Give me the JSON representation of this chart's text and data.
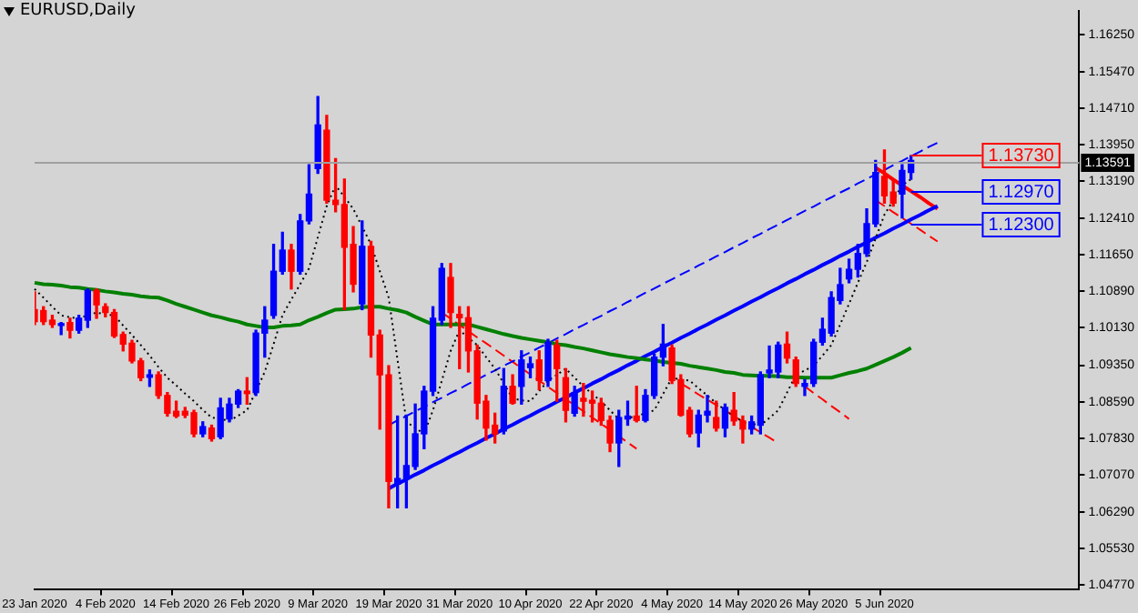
{
  "chart_data": {
    "type": "candlestick",
    "title": "EURUSD,Daily",
    "categories": [
      "23 Jan 2020",
      null,
      null,
      null,
      null,
      null,
      null,
      null,
      "4 Feb 2020",
      null,
      null,
      null,
      null,
      null,
      null,
      null,
      "14 Feb 2020",
      null,
      null,
      null,
      null,
      null,
      null,
      null,
      "26 Feb 2020",
      null,
      null,
      null,
      null,
      null,
      null,
      null,
      "9 Mar 2020",
      null,
      null,
      null,
      null,
      null,
      null,
      null,
      "19 Mar 2020",
      null,
      null,
      null,
      null,
      null,
      null,
      null,
      "31 Mar 2020",
      null,
      null,
      null,
      null,
      null,
      null,
      null,
      "10 Apr 2020",
      null,
      null,
      null,
      null,
      null,
      null,
      null,
      "22 Apr 2020",
      null,
      null,
      null,
      null,
      null,
      null,
      null,
      "4 May 2020",
      null,
      null,
      null,
      null,
      null,
      null,
      null,
      "14 May 2020",
      null,
      null,
      null,
      null,
      null,
      null,
      null,
      "26 May 2020",
      null,
      null,
      null,
      null,
      null,
      null,
      null,
      "5 Jun 2020",
      null,
      null,
      null,
      null,
      null,
      null,
      null,
      null,
      null,
      null,
      null,
      null,
      null,
      null,
      null,
      null,
      null,
      null,
      null,
      null,
      null,
      null
    ],
    "ohlc": [
      [
        1.1051,
        1.1088,
        1.102,
        1.1026
      ],
      [
        1.1049,
        1.1057,
        1.102,
        1.1026
      ],
      [
        1.1029,
        1.1039,
        1.1014,
        1.102
      ],
      [
        1.1018,
        1.1024,
        1.0999,
        1.102
      ],
      [
        1.1024,
        1.1033,
        1.0992,
        1.1008
      ],
      [
        1.1008,
        1.1039,
        1.1002,
        1.1033
      ],
      [
        1.1029,
        1.1094,
        1.1014,
        1.1091
      ],
      [
        1.1091,
        1.1094,
        1.1033,
        1.1061
      ],
      [
        1.1057,
        1.1063,
        1.1036,
        1.1045
      ],
      [
        1.1045,
        1.1051,
        1.0993,
        1.0996
      ],
      [
        1.0999,
        1.1004,
        1.0965,
        1.0979
      ],
      [
        1.0981,
        1.0987,
        1.094,
        1.0944
      ],
      [
        1.0944,
        1.0949,
        1.0903,
        1.0909
      ],
      [
        1.091,
        1.0925,
        1.0891,
        1.0915
      ],
      [
        1.0915,
        1.0921,
        1.0866,
        1.0872
      ],
      [
        1.0872,
        1.0878,
        1.0829,
        1.0835
      ],
      [
        1.0839,
        1.086,
        1.0826,
        1.0829
      ],
      [
        1.0839,
        1.0847,
        1.0826,
        1.0831
      ],
      [
        1.0836,
        1.0841,
        1.0786,
        1.0792
      ],
      [
        1.0792,
        1.0817,
        1.0786,
        1.0807
      ],
      [
        1.0804,
        1.081,
        1.0777,
        1.0782
      ],
      [
        1.0786,
        1.0866,
        1.0782,
        1.0846
      ],
      [
        1.0823,
        1.0866,
        1.0817,
        1.0854
      ],
      [
        1.0854,
        1.0884,
        1.0847,
        1.0881
      ],
      [
        1.0881,
        1.0909,
        1.0854,
        1.0876
      ],
      [
        1.0878,
        1.1008,
        1.0872,
        1.1002
      ],
      [
        1.1002,
        1.1057,
        1.0952,
        1.1029
      ],
      [
        1.1039,
        1.1187,
        1.1033,
        1.1131
      ],
      [
        1.1131,
        1.1212,
        1.1125,
        1.1175
      ],
      [
        1.1175,
        1.1187,
        1.1094,
        1.1131
      ],
      [
        1.1131,
        1.1249,
        1.1125,
        1.1236
      ],
      [
        1.1236,
        1.1353,
        1.123,
        1.1292
      ],
      [
        1.1345,
        1.1495,
        1.1335,
        1.1436
      ],
      [
        1.1425,
        1.1456,
        1.1273,
        1.1279
      ],
      [
        1.1279,
        1.1366,
        1.1255,
        1.127
      ],
      [
        1.127,
        1.1323,
        1.1051,
        1.1181
      ],
      [
        1.1187,
        1.1224,
        1.1088,
        1.1104
      ],
      [
        1.1063,
        1.1236,
        1.1051,
        1.1183
      ],
      [
        1.1183,
        1.1193,
        1.0952,
        1.0998
      ],
      [
        1.0998,
        1.1008,
        1.0802,
        1.0915
      ],
      [
        1.0915,
        1.0934,
        1.0638,
        1.0693
      ],
      [
        1.0687,
        1.0829,
        1.0638,
        1.0699
      ],
      [
        1.0699,
        1.0831,
        1.0638,
        1.0726
      ],
      [
        1.0724,
        1.0854,
        1.0718,
        1.0792
      ],
      [
        1.0792,
        1.0891,
        1.0761,
        1.0881
      ],
      [
        1.0881,
        1.1057,
        1.0872,
        1.1033
      ],
      [
        1.1029,
        1.1147,
        1.102,
        1.1137
      ],
      [
        1.1118,
        1.1147,
        1.1014,
        1.1045
      ],
      [
        1.1041,
        1.1057,
        1.0928,
        1.1034
      ],
      [
        1.1034,
        1.1057,
        1.0921,
        1.0965
      ],
      [
        1.0965,
        1.0977,
        1.0823,
        1.0856
      ],
      [
        1.086,
        1.0872,
        1.0779,
        1.0804
      ],
      [
        1.081,
        1.0835,
        1.0773,
        1.0792
      ],
      [
        1.0798,
        1.0928,
        1.0792,
        1.0891
      ],
      [
        1.0891,
        1.0915,
        1.0854,
        1.0856
      ],
      [
        1.0891,
        1.0965,
        1.0854,
        1.0946
      ],
      [
        1.093,
        1.0952,
        1.0909,
        1.0938
      ],
      [
        1.0946,
        1.0965,
        1.0884,
        1.0903
      ],
      [
        1.0903,
        1.0989,
        1.0891,
        1.0983
      ],
      [
        1.0977,
        1.0987,
        1.086,
        1.0928
      ],
      [
        1.0909,
        1.0928,
        1.0817,
        1.0841
      ],
      [
        1.0835,
        1.0891,
        1.0829,
        1.0878
      ],
      [
        1.0866,
        1.0897,
        1.0829,
        1.086
      ],
      [
        1.0862,
        1.0881,
        1.0817,
        1.0856
      ],
      [
        1.0856,
        1.0866,
        1.081,
        1.082
      ],
      [
        1.082,
        1.0829,
        1.0755,
        1.0773
      ],
      [
        1.0773,
        1.0841,
        1.0724,
        1.0826
      ],
      [
        1.0823,
        1.086,
        1.081,
        1.0829
      ],
      [
        1.0829,
        1.0891,
        1.0817,
        1.082
      ],
      [
        1.082,
        1.0884,
        1.0817,
        1.0872
      ],
      [
        1.0872,
        1.0958,
        1.0866,
        1.0952
      ],
      [
        1.0952,
        1.102,
        1.0934,
        1.0979
      ],
      [
        1.0971,
        1.0977,
        1.0897,
        1.0903
      ],
      [
        1.0905,
        1.0915,
        1.0829,
        1.0831
      ],
      [
        1.0841,
        1.0847,
        1.0786,
        1.0792
      ],
      [
        1.0794,
        1.0841,
        1.0765,
        1.0831
      ],
      [
        1.0831,
        1.0872,
        1.0817,
        1.0839
      ],
      [
        1.0826,
        1.086,
        1.0798,
        1.0804
      ],
      [
        1.0804,
        1.0854,
        1.0786,
        1.0847
      ],
      [
        1.0841,
        1.0878,
        1.081,
        1.0819
      ],
      [
        1.0819,
        1.0829,
        1.0773,
        1.0802
      ],
      [
        1.0802,
        1.0829,
        1.0792,
        1.0817
      ],
      [
        1.081,
        1.0921,
        1.0792,
        1.0915
      ],
      [
        1.0919,
        1.0975,
        1.0909,
        1.0925
      ],
      [
        1.0921,
        1.0983,
        1.0909,
        1.0977
      ],
      [
        1.0979,
        1.1004,
        1.094,
        1.095
      ],
      [
        1.0946,
        1.0952,
        1.0891,
        1.0897
      ],
      [
        1.0891,
        1.0905,
        1.0872,
        1.0897
      ],
      [
        1.0897,
        1.0989,
        1.0891,
        1.0983
      ],
      [
        1.0983,
        1.1033,
        1.0977,
        1.101
      ],
      [
        1.1002,
        1.1088,
        1.0996,
        1.1076
      ],
      [
        1.107,
        1.1137,
        1.1063,
        1.1103
      ],
      [
        1.1115,
        1.1156,
        1.1107,
        1.1135
      ],
      [
        1.1135,
        1.1187,
        1.1119,
        1.1168
      ],
      [
        1.1168,
        1.1261,
        1.1162,
        1.123
      ],
      [
        1.123,
        1.1362,
        1.1224,
        1.1337
      ],
      [
        1.1329,
        1.1384,
        1.1273,
        1.1288
      ],
      [
        1.1296,
        1.132,
        1.1267,
        1.1273
      ],
      [
        1.1292,
        1.1353,
        1.1242,
        1.1341
      ],
      [
        1.1337,
        1.1372,
        1.1323,
        1.1362
      ],
      null,
      null,
      null,
      null,
      null,
      null,
      null,
      null,
      null,
      null,
      null,
      null,
      null,
      null,
      null,
      null,
      null,
      null,
      null
    ],
    "colors": [
      "#ff0000",
      "#ff0000",
      "#ff0000",
      "#0000ff",
      "#ff0000",
      "#0000ff",
      "#0000ff",
      "#ff0000",
      "#ff0000",
      "#ff0000",
      "#ff0000",
      "#ff0000",
      "#ff0000",
      "#0000ff",
      "#ff0000",
      "#ff0000",
      "#ff0000",
      "#ff0000",
      "#ff0000",
      "#0000ff",
      "#ff0000",
      "#0000ff",
      "#0000ff",
      "#0000ff",
      "#ff0000",
      "#0000ff",
      "#0000ff",
      "#0000ff",
      "#0000ff",
      "#ff0000",
      "#0000ff",
      "#0000ff",
      "#0000ff",
      "#ff0000",
      "#ff0000",
      "#ff0000",
      "#ff0000",
      "#0000ff",
      "#ff0000",
      "#ff0000",
      "#ff0000",
      "#0000ff",
      "#0000ff",
      "#0000ff",
      "#0000ff",
      "#0000ff",
      "#0000ff",
      "#ff0000",
      "#ff0000",
      "#ff0000",
      "#ff0000",
      "#ff0000",
      "#ff0000",
      "#0000ff",
      "#ff0000",
      "#0000ff",
      "#0000ff",
      "#ff0000",
      "#0000ff",
      "#ff0000",
      "#ff0000",
      "#0000ff",
      "#ff0000",
      "#ff0000",
      "#ff0000",
      "#ff0000",
      "#0000ff",
      "#0000ff",
      "#ff0000",
      "#0000ff",
      "#0000ff",
      "#0000ff",
      "#ff0000",
      "#ff0000",
      "#ff0000",
      "#0000ff",
      "#0000ff",
      "#ff0000",
      "#0000ff",
      "#ff0000",
      "#ff0000",
      "#0000ff",
      "#0000ff",
      "#0000ff",
      "#0000ff",
      "#ff0000",
      "#ff0000",
      "#0000ff",
      "#0000ff",
      "#0000ff",
      "#0000ff",
      "#0000ff",
      "#0000ff",
      "#0000ff",
      "#0000ff",
      "#0000ff",
      "#ff0000",
      "#ff0000",
      "#0000ff",
      "#0000ff",
      null,
      null,
      null,
      null,
      null,
      null,
      null,
      null,
      null,
      null,
      null,
      null,
      null,
      null,
      null,
      null,
      null,
      null,
      null
    ],
    "series": [
      {
        "type": "line",
        "color": "#008000",
        "line_style": "solid",
        "values": [
          1.1107,
          1.1104,
          1.1103,
          1.1101,
          1.1098,
          1.1097,
          1.1094,
          1.1092,
          1.1089,
          1.1087,
          1.1084,
          1.1082,
          1.1079,
          1.1077,
          1.1076,
          1.107,
          1.1063,
          1.1057,
          1.1051,
          1.1045,
          1.1039,
          1.1035,
          1.103,
          1.1026,
          1.102,
          1.1017,
          1.1014,
          1.1014,
          1.1017,
          1.1018,
          1.102,
          1.1029,
          1.1036,
          1.1044,
          1.1051,
          1.1052,
          1.1053,
          1.1056,
          1.1057,
          1.1057,
          1.1053,
          1.105,
          1.1045,
          1.1036,
          1.1028,
          1.102,
          1.102,
          1.102,
          1.102,
          1.102,
          1.1015,
          1.101,
          1.1005,
          1.1,
          1.0996,
          1.0992,
          1.0989,
          1.0986,
          1.0983,
          1.0979,
          1.0977,
          1.0973,
          1.097,
          1.0966,
          1.0962,
          1.0958,
          1.0955,
          1.0952,
          1.095,
          1.0947,
          1.0945,
          1.0942,
          1.094,
          1.0938,
          1.0934,
          1.0931,
          1.0928,
          1.0925,
          1.0921,
          1.0919,
          1.0915,
          1.0914,
          1.0913,
          1.0913,
          1.0912,
          1.091,
          1.091,
          1.0909,
          1.0909,
          1.0909,
          1.0909,
          1.0914,
          1.0919,
          1.0923,
          1.0928,
          1.0936,
          1.0944,
          1.0952,
          1.0961,
          1.0971,
          null,
          null,
          null,
          null,
          null,
          null,
          null,
          null,
          null,
          null,
          null,
          null,
          null,
          null,
          null,
          null,
          null,
          null,
          null
        ]
      },
      {
        "type": "line",
        "color": "#000000",
        "line_style": "dotted",
        "values": [
          1.1094,
          1.1076,
          1.1057,
          1.1039,
          1.1035,
          1.1033,
          1.1039,
          1.1045,
          1.1041,
          1.1039,
          1.1018,
          1.0998,
          1.0977,
          1.0955,
          1.0931,
          1.0909,
          1.0893,
          1.0876,
          1.086,
          1.0842,
          1.0826,
          1.0823,
          1.0819,
          1.083,
          1.0841,
          1.0881,
          1.0921,
          1.0979,
          1.1039,
          1.1072,
          1.1104,
          1.1137,
          1.1202,
          1.1267,
          1.131,
          1.1286,
          1.1261,
          1.1224,
          1.1187,
          1.1131,
          1.1076,
          1.0946,
          1.0817,
          1.0804,
          1.0792,
          1.0841,
          1.0903,
          1.0965,
          1.1008,
          1.0992,
          1.0977,
          1.0952,
          1.0928,
          1.0897,
          1.0866,
          1.0862,
          1.086,
          1.0881,
          1.0903,
          1.0915,
          1.0928,
          1.0909,
          1.0891,
          1.0875,
          1.086,
          1.0841,
          1.0823,
          1.0825,
          1.0829,
          1.0835,
          1.0841,
          1.0875,
          1.0909,
          1.0905,
          1.0903,
          1.0887,
          1.0872,
          1.0856,
          1.0841,
          1.0829,
          1.0817,
          1.0813,
          1.081,
          1.0825,
          1.0841,
          1.0878,
          1.0915,
          1.0924,
          1.0934,
          1.0955,
          1.0977,
          1.102,
          1.1063,
          1.1107,
          1.115,
          1.1199,
          1.1249,
          1.1279,
          1.131,
          1.1323,
          null,
          null,
          null,
          null,
          null,
          null,
          null,
          null,
          null,
          null,
          null,
          null,
          null,
          null,
          null,
          null,
          null,
          null,
          null
        ]
      },
      {
        "type": "line",
        "color": "#0000ff",
        "line_style": "solid",
        "values": [
          null,
          null,
          null,
          null,
          null,
          null,
          null,
          null,
          null,
          null,
          null,
          null,
          null,
          null,
          null,
          null,
          null,
          null,
          null,
          null,
          null,
          null,
          null,
          null,
          null,
          null,
          null,
          null,
          null,
          null,
          null,
          null,
          null,
          null,
          null,
          null,
          null,
          null,
          null,
          null,
          1.0678,
          1.0688,
          1.0697,
          1.0707,
          1.0716,
          1.0726,
          1.0735,
          1.0745,
          1.0754,
          1.0764,
          1.0773,
          1.0783,
          1.0792,
          1.0802,
          1.0811,
          1.0821,
          1.083,
          1.084,
          1.0849,
          1.0859,
          1.0868,
          1.0878,
          1.0887,
          1.0897,
          1.0906,
          1.0916,
          1.0925,
          1.0935,
          1.0944,
          1.0954,
          1.0963,
          1.0973,
          1.0982,
          1.0992,
          1.1001,
          1.1011,
          1.102,
          1.103,
          1.1039,
          1.1049,
          1.1058,
          1.1068,
          1.1077,
          1.1087,
          1.1096,
          1.1106,
          1.1115,
          1.1125,
          1.1134,
          1.1144,
          1.1153,
          1.1163,
          1.1172,
          1.1182,
          1.1191,
          1.1201,
          1.121,
          1.122,
          1.1229,
          1.1239,
          1.1248,
          1.1258,
          1.1267,
          null,
          null,
          null,
          null,
          null,
          null,
          null,
          null,
          null,
          null,
          null,
          null,
          null,
          null,
          null,
          null
        ]
      },
      {
        "type": "line",
        "color": "#0000ff",
        "line_style": "dashed",
        "values": [
          null,
          null,
          null,
          null,
          null,
          null,
          null,
          null,
          null,
          null,
          null,
          null,
          null,
          null,
          null,
          null,
          null,
          null,
          null,
          null,
          null,
          null,
          null,
          null,
          null,
          null,
          null,
          null,
          null,
          null,
          null,
          null,
          null,
          null,
          null,
          null,
          null,
          null,
          null,
          null,
          1.081,
          1.082,
          1.0829,
          1.0839,
          1.0848,
          1.0858,
          1.0867,
          1.0877,
          1.0886,
          1.0896,
          1.0905,
          1.0915,
          1.0924,
          1.0934,
          1.0943,
          1.0953,
          1.0962,
          1.0972,
          1.0981,
          1.0991,
          1.1,
          1.101,
          1.1019,
          1.1029,
          1.1038,
          1.1048,
          1.1057,
          1.1067,
          1.1076,
          1.1086,
          1.1095,
          1.1105,
          1.1114,
          1.1124,
          1.1133,
          1.1143,
          1.1152,
          1.1162,
          1.1171,
          1.1181,
          1.119,
          1.12,
          1.1209,
          1.1219,
          1.1228,
          1.1238,
          1.1247,
          1.1257,
          1.1266,
          1.1276,
          1.1285,
          1.1295,
          1.1304,
          1.1314,
          1.1323,
          1.1333,
          1.1342,
          1.1352,
          1.1361,
          1.1371,
          1.138,
          1.139,
          1.1399,
          null,
          null,
          null,
          null,
          null,
          null,
          null,
          null,
          null,
          null,
          null,
          null,
          null,
          null,
          null,
          null
        ]
      },
      {
        "type": "line",
        "color": "#ff0000",
        "line_style": "dashed",
        "values": [
          null,
          null,
          null,
          null,
          null,
          null,
          null,
          null,
          null,
          null,
          null,
          null,
          null,
          null,
          null,
          null,
          null,
          null,
          null,
          null,
          null,
          null,
          null,
          null,
          null,
          null,
          null,
          null,
          null,
          null,
          null,
          null,
          null,
          null,
          null,
          null,
          null,
          null,
          null,
          null,
          null,
          null,
          null,
          null,
          null,
          null,
          1.1045,
          1.1032,
          1.1019,
          1.1006,
          1.0993,
          1.0981,
          1.0968,
          1.0955,
          1.0942,
          1.0929,
          1.0916,
          1.0903,
          1.089,
          1.0877,
          1.0864,
          1.0852,
          1.0839,
          1.0826,
          1.0813,
          1.08,
          1.0787,
          1.0774,
          1.0761,
          null,
          null,
          null,
          null,
          1.0897,
          1.0886,
          1.0874,
          1.0863,
          1.0852,
          1.0841,
          1.0829,
          1.0818,
          1.0807,
          1.0795,
          1.0784,
          1.0773,
          null,
          null,
          1.0891,
          1.0877,
          1.0864,
          1.085,
          1.0837,
          1.0823,
          null,
          null,
          1.1279,
          1.1267,
          1.1254,
          1.1242,
          1.123,
          1.1218,
          1.1205,
          1.1193,
          null,
          null,
          null,
          null,
          null,
          null,
          null,
          null,
          null,
          null,
          null,
          null,
          null,
          null,
          null,
          null
        ]
      },
      {
        "type": "line",
        "color": "#ff0000",
        "line_style": "solid",
        "values": [
          null,
          null,
          null,
          null,
          null,
          null,
          null,
          null,
          null,
          null,
          null,
          null,
          null,
          null,
          null,
          null,
          null,
          null,
          null,
          null,
          null,
          null,
          null,
          null,
          null,
          null,
          null,
          null,
          null,
          null,
          null,
          null,
          null,
          null,
          null,
          null,
          null,
          null,
          null,
          null,
          null,
          null,
          null,
          null,
          null,
          null,
          null,
          null,
          null,
          null,
          null,
          null,
          null,
          null,
          null,
          null,
          null,
          null,
          null,
          null,
          null,
          null,
          null,
          null,
          null,
          null,
          null,
          null,
          null,
          null,
          null,
          null,
          null,
          null,
          null,
          null,
          null,
          null,
          null,
          null,
          null,
          null,
          null,
          null,
          null,
          null,
          null,
          null,
          null,
          null,
          null,
          null,
          null,
          null,
          null,
          1.1347,
          1.1335,
          1.1322,
          1.131,
          1.1298,
          1.1286,
          1.1273,
          1.1261,
          null,
          null,
          null,
          null,
          null,
          null,
          null,
          null,
          null,
          null,
          null,
          null,
          null,
          null,
          null,
          null
        ]
      }
    ],
    "ylim": [
      1.0467,
      1.1673
    ],
    "yticks": [
      {
        "value": 1.1625,
        "label": "1.16250"
      },
      {
        "value": 1.1547,
        "label": "1.15470"
      },
      {
        "value": 1.1471,
        "label": "1.14710"
      },
      {
        "value": 1.1395,
        "label": "1.13950"
      },
      {
        "value": 1.1319,
        "label": "1.13190"
      },
      {
        "value": 1.1241,
        "label": "1.12410"
      },
      {
        "value": 1.1165,
        "label": "1.11650"
      },
      {
        "value": 1.1089,
        "label": "1.10890"
      },
      {
        "value": 1.1013,
        "label": "1.10130"
      },
      {
        "value": 1.0935,
        "label": "1.09350"
      },
      {
        "value": 1.0859,
        "label": "1.08590"
      },
      {
        "value": 1.0783,
        "label": "1.07830"
      },
      {
        "value": 1.0707,
        "label": "1.07070"
      },
      {
        "value": 1.0629,
        "label": "1.06290"
      },
      {
        "value": 1.0553,
        "label": "1.05530"
      },
      {
        "value": 1.0477,
        "label": "1.04770"
      }
    ],
    "ref_lines": [
      {
        "axis": "y",
        "value": 1.13591,
        "label": "1.13591",
        "color": "#a0a0a0"
      },
      {
        "axis": "y",
        "value": 1.1373,
        "label": "1.13730",
        "color": "#ff0000"
      },
      {
        "axis": "y",
        "value": 1.1297,
        "label": "1.12970",
        "color": "#0000ff"
      },
      {
        "axis": "y",
        "value": 1.123,
        "label": "1.12300",
        "color": "#0000ff"
      }
    ],
    "marker": "none"
  }
}
